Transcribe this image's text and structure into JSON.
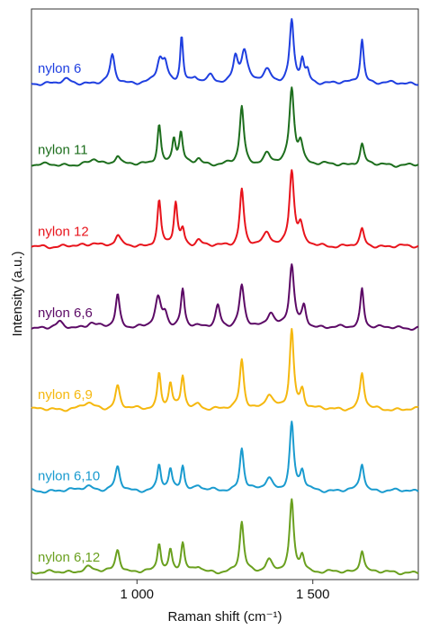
{
  "chart_data": {
    "type": "line",
    "xlabel": "Raman shift (cm⁻¹)",
    "ylabel": "Intensity (a.u.)",
    "xlim": [
      700,
      1800
    ],
    "ylim": [
      0,
      7
    ],
    "x_ticks": [
      1000,
      1500
    ],
    "x_tick_labels": [
      "1 000",
      "1 500"
    ],
    "y_ticks": "none",
    "grid": false,
    "legend": "none (labels placed on left of each spectrum)",
    "stacking": "vertically offset, one series per row",
    "series": [
      {
        "name": "nylon 6",
        "color": "#1f3fe0",
        "peaks": [
          [
            800,
            0.04,
            12
          ],
          [
            930,
            0.32,
            8
          ],
          [
            1065,
            0.26,
            10
          ],
          [
            1080,
            0.2,
            8
          ],
          [
            1127,
            0.55,
            5
          ],
          [
            1165,
            0.06,
            8
          ],
          [
            1210,
            0.08,
            10
          ],
          [
            1280,
            0.3,
            8
          ],
          [
            1305,
            0.36,
            10
          ],
          [
            1370,
            0.15,
            14
          ],
          [
            1440,
            0.72,
            7
          ],
          [
            1470,
            0.26,
            6
          ],
          [
            1485,
            0.12,
            6
          ],
          [
            1640,
            0.52,
            6
          ]
        ]
      },
      {
        "name": "nylon 11",
        "color": "#1d6e1d",
        "peaks": [
          [
            880,
            0.06,
            14
          ],
          [
            945,
            0.12,
            9
          ],
          [
            1063,
            0.47,
            6
          ],
          [
            1105,
            0.3,
            6
          ],
          [
            1125,
            0.35,
            6
          ],
          [
            1175,
            0.07,
            10
          ],
          [
            1298,
            0.68,
            7
          ],
          [
            1370,
            0.12,
            12
          ],
          [
            1440,
            0.88,
            8
          ],
          [
            1465,
            0.25,
            8
          ],
          [
            1640,
            0.24,
            7
          ]
        ]
      },
      {
        "name": "nylon 12",
        "color": "#e8141c",
        "peaks": [
          [
            880,
            0.05,
            14
          ],
          [
            945,
            0.12,
            9
          ],
          [
            1063,
            0.52,
            6
          ],
          [
            1110,
            0.5,
            6
          ],
          [
            1130,
            0.18,
            6
          ],
          [
            1175,
            0.07,
            10
          ],
          [
            1298,
            0.67,
            7
          ],
          [
            1370,
            0.14,
            12
          ],
          [
            1440,
            0.88,
            8
          ],
          [
            1465,
            0.22,
            8
          ],
          [
            1640,
            0.19,
            7
          ]
        ]
      },
      {
        "name": "nylon 6,6",
        "color": "#5c0a66",
        "peaks": [
          [
            780,
            0.06,
            10
          ],
          [
            870,
            0.06,
            14
          ],
          [
            945,
            0.38,
            7
          ],
          [
            1060,
            0.33,
            10
          ],
          [
            1080,
            0.15,
            8
          ],
          [
            1130,
            0.45,
            6
          ],
          [
            1230,
            0.26,
            8
          ],
          [
            1298,
            0.48,
            8
          ],
          [
            1380,
            0.18,
            12
          ],
          [
            1440,
            0.72,
            8
          ],
          [
            1475,
            0.24,
            7
          ],
          [
            1640,
            0.46,
            6
          ]
        ]
      },
      {
        "name": "nylon 6,9",
        "color": "#f5b80f",
        "peaks": [
          [
            860,
            0.07,
            18
          ],
          [
            945,
            0.27,
            8
          ],
          [
            1063,
            0.42,
            6
          ],
          [
            1095,
            0.3,
            6
          ],
          [
            1130,
            0.38,
            6
          ],
          [
            1175,
            0.06,
            10
          ],
          [
            1298,
            0.58,
            7
          ],
          [
            1375,
            0.16,
            12
          ],
          [
            1440,
            0.92,
            7
          ],
          [
            1470,
            0.22,
            7
          ],
          [
            1640,
            0.42,
            7
          ]
        ]
      },
      {
        "name": "nylon 6,10",
        "color": "#1a9bcf",
        "peaks": [
          [
            860,
            0.06,
            18
          ],
          [
            945,
            0.27,
            8
          ],
          [
            1063,
            0.3,
            6
          ],
          [
            1095,
            0.24,
            6
          ],
          [
            1130,
            0.3,
            6
          ],
          [
            1175,
            0.06,
            10
          ],
          [
            1298,
            0.5,
            7
          ],
          [
            1375,
            0.14,
            12
          ],
          [
            1440,
            0.78,
            7
          ],
          [
            1470,
            0.22,
            7
          ],
          [
            1640,
            0.32,
            7
          ]
        ]
      },
      {
        "name": "nylon 6,12",
        "color": "#6aa01f",
        "peaks": [
          [
            860,
            0.06,
            18
          ],
          [
            945,
            0.27,
            8
          ],
          [
            1063,
            0.34,
            6
          ],
          [
            1095,
            0.26,
            6
          ],
          [
            1130,
            0.34,
            6
          ],
          [
            1175,
            0.06,
            10
          ],
          [
            1298,
            0.58,
            7
          ],
          [
            1375,
            0.14,
            12
          ],
          [
            1440,
            0.82,
            7
          ],
          [
            1470,
            0.2,
            7
          ],
          [
            1640,
            0.27,
            7
          ]
        ]
      }
    ]
  }
}
